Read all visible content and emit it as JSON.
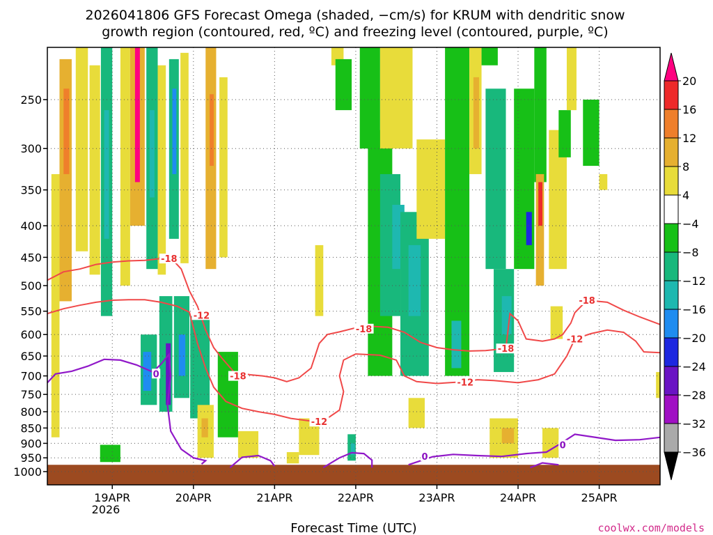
{
  "chart_data": {
    "type": "heatmap",
    "title_line1": "2026041806 GFS Forecast Omega (shaded, −cm/s) for KRUM with dendritic snow",
    "title_line2": "growth region (contoured, red, ºC) and freezing level (contoured, purple, ºC)",
    "xlabel": "Forecast Time (UTC)",
    "ylabel": "",
    "x_ticks": [
      "19APR",
      "20APR",
      "21APR",
      "22APR",
      "23APR",
      "24APR",
      "25APR"
    ],
    "x_tick_year": "2026",
    "xlim": [
      18.2,
      25.75
    ],
    "y_ticks": [
      250,
      300,
      350,
      400,
      450,
      500,
      550,
      600,
      650,
      700,
      750,
      800,
      850,
      900,
      950,
      1000
    ],
    "ylim": [
      1000,
      200
    ],
    "colorbar": {
      "tick_labels": [
        "20",
        "16",
        "12",
        "8",
        "4",
        "−4",
        "−8",
        "−12",
        "−16",
        "−20",
        "−24",
        "−28",
        "−32",
        "−36"
      ],
      "colors": [
        "#ff0080",
        "#ee2a2a",
        "#ef7f2b",
        "#e6b030",
        "#e8dc3a",
        "#ffffff",
        "#17c017",
        "#18b87c",
        "#1eb8b0",
        "#1f8cf0",
        "#1d28e0",
        "#6a14c4",
        "#a010c4",
        "#aaaaaa",
        "#000000"
      ]
    },
    "omega_cells": [
      {
        "t0": 18.35,
        "t1": 18.5,
        "p0": 215,
        "p1": 530,
        "v": 8
      },
      {
        "t0": 18.4,
        "t1": 18.47,
        "p0": 240,
        "p1": 330,
        "v": 14
      },
      {
        "t0": 18.25,
        "t1": 18.35,
        "p0": 330,
        "p1": 880,
        "v": 6
      },
      {
        "t0": 18.55,
        "t1": 18.7,
        "p0": 200,
        "p1": 440,
        "v": 5
      },
      {
        "t0": 18.72,
        "t1": 18.85,
        "p0": 220,
        "p1": 480,
        "v": 6
      },
      {
        "t0": 18.86,
        "t1": 19.0,
        "p0": 200,
        "p1": 560,
        "v": -8
      },
      {
        "t0": 18.9,
        "t1": 18.96,
        "p0": 260,
        "p1": 420,
        "v": -12
      },
      {
        "t0": 18.85,
        "t1": 19.1,
        "p0": 905,
        "p1": 965,
        "v": -6
      },
      {
        "t0": 19.1,
        "t1": 19.22,
        "p0": 200,
        "p1": 500,
        "v": 5
      },
      {
        "t0": 19.22,
        "t1": 19.4,
        "p0": 200,
        "p1": 400,
        "v": 10
      },
      {
        "t0": 19.28,
        "t1": 19.34,
        "p0": 205,
        "p1": 340,
        "v": 20
      },
      {
        "t0": 19.42,
        "t1": 19.56,
        "p0": 205,
        "p1": 470,
        "v": -9
      },
      {
        "t0": 19.46,
        "t1": 19.52,
        "p0": 260,
        "p1": 360,
        "v": -12
      },
      {
        "t0": 19.56,
        "t1": 19.66,
        "p0": 220,
        "p1": 480,
        "v": 5
      },
      {
        "t0": 19.7,
        "t1": 19.82,
        "p0": 215,
        "p1": 420,
        "v": -10
      },
      {
        "t0": 19.74,
        "t1": 19.79,
        "p0": 240,
        "p1": 330,
        "v": -17
      },
      {
        "t0": 19.84,
        "t1": 19.94,
        "p0": 210,
        "p1": 460,
        "v": 6
      },
      {
        "t0": 20.15,
        "t1": 20.28,
        "p0": 205,
        "p1": 470,
        "v": 8
      },
      {
        "t0": 20.2,
        "t1": 20.25,
        "p0": 245,
        "p1": 320,
        "v": 14
      },
      {
        "t0": 20.32,
        "t1": 20.42,
        "p0": 230,
        "p1": 450,
        "v": 5
      },
      {
        "t0": 19.35,
        "t1": 19.55,
        "p0": 600,
        "p1": 780,
        "v": -9
      },
      {
        "t0": 19.38,
        "t1": 19.48,
        "p0": 640,
        "p1": 740,
        "v": -16
      },
      {
        "t0": 19.58,
        "t1": 19.74,
        "p0": 520,
        "p1": 800,
        "v": -10
      },
      {
        "t0": 19.66,
        "t1": 19.72,
        "p0": 620,
        "p1": 780,
        "v": -26
      },
      {
        "t0": 19.76,
        "t1": 19.95,
        "p0": 520,
        "p1": 760,
        "v": -10
      },
      {
        "t0": 19.82,
        "t1": 19.9,
        "p0": 600,
        "p1": 700,
        "v": -16
      },
      {
        "t0": 19.96,
        "t1": 20.2,
        "p0": 560,
        "p1": 820,
        "v": -8
      },
      {
        "t0": 20.05,
        "t1": 20.25,
        "p0": 780,
        "p1": 950,
        "v": 6
      },
      {
        "t0": 20.1,
        "t1": 20.18,
        "p0": 820,
        "p1": 880,
        "v": 9
      },
      {
        "t0": 20.3,
        "t1": 20.55,
        "p0": 640,
        "p1": 880,
        "v": -6
      },
      {
        "t0": 20.55,
        "t1": 20.8,
        "p0": 860,
        "p1": 950,
        "v": 5
      },
      {
        "t0": 21.3,
        "t1": 21.55,
        "p0": 820,
        "p1": 940,
        "v": 5
      },
      {
        "t0": 21.5,
        "t1": 21.6,
        "p0": 430,
        "p1": 560,
        "v": 5
      },
      {
        "t0": 21.15,
        "t1": 21.3,
        "p0": 930,
        "p1": 970,
        "v": 6
      },
      {
        "t0": 21.7,
        "t1": 21.85,
        "p0": 200,
        "p1": 220,
        "v": 5
      },
      {
        "t0": 21.75,
        "t1": 21.95,
        "p0": 215,
        "p1": 260,
        "v": -6
      },
      {
        "t0": 21.9,
        "t1": 22.0,
        "p0": 870,
        "p1": 960,
        "v": -8
      },
      {
        "t0": 21.94,
        "t1": 21.99,
        "p0": 900,
        "p1": 940,
        "v": -14
      },
      {
        "t0": 22.05,
        "t1": 22.3,
        "p0": 200,
        "p1": 300,
        "v": -6
      },
      {
        "t0": 22.15,
        "t1": 22.45,
        "p0": 280,
        "p1": 700,
        "v": -7
      },
      {
        "t0": 22.3,
        "t1": 22.55,
        "p0": 330,
        "p1": 560,
        "v": -10
      },
      {
        "t0": 22.45,
        "t1": 22.6,
        "p0": 370,
        "p1": 470,
        "v": -14
      },
      {
        "t0": 22.55,
        "t1": 22.9,
        "p0": 380,
        "p1": 700,
        "v": -8
      },
      {
        "t0": 22.65,
        "t1": 22.8,
        "p0": 430,
        "p1": 560,
        "v": -13
      },
      {
        "t0": 22.3,
        "t1": 22.7,
        "p0": 200,
        "p1": 300,
        "v": 5
      },
      {
        "t0": 22.75,
        "t1": 23.1,
        "p0": 290,
        "p1": 420,
        "v": 5
      },
      {
        "t0": 22.65,
        "t1": 22.85,
        "p0": 760,
        "p1": 850,
        "v": 6
      },
      {
        "t0": 23.1,
        "t1": 23.4,
        "p0": 200,
        "p1": 700,
        "v": -7
      },
      {
        "t0": 23.18,
        "t1": 23.3,
        "p0": 570,
        "p1": 680,
        "v": -12
      },
      {
        "t0": 23.4,
        "t1": 23.55,
        "p0": 200,
        "p1": 330,
        "v": 6
      },
      {
        "t0": 23.45,
        "t1": 23.52,
        "p0": 230,
        "p1": 300,
        "v": 9
      },
      {
        "t0": 23.55,
        "t1": 23.75,
        "p0": 200,
        "p1": 220,
        "v": -6
      },
      {
        "t0": 23.6,
        "t1": 23.85,
        "p0": 240,
        "p1": 470,
        "v": -8
      },
      {
        "t0": 23.7,
        "t1": 23.95,
        "p0": 470,
        "p1": 690,
        "v": -10
      },
      {
        "t0": 23.8,
        "t1": 23.92,
        "p0": 520,
        "p1": 600,
        "v": -14
      },
      {
        "t0": 23.95,
        "t1": 24.2,
        "p0": 240,
        "p1": 470,
        "v": -7
      },
      {
        "t0": 24.1,
        "t1": 24.17,
        "p0": 380,
        "p1": 430,
        "v": -22
      },
      {
        "t0": 24.2,
        "t1": 24.35,
        "p0": 200,
        "p1": 340,
        "v": -7
      },
      {
        "t0": 24.22,
        "t1": 24.32,
        "p0": 330,
        "p1": 500,
        "v": 8
      },
      {
        "t0": 24.25,
        "t1": 24.3,
        "p0": 340,
        "p1": 400,
        "v": 18
      },
      {
        "t0": 24.38,
        "t1": 24.6,
        "p0": 280,
        "p1": 470,
        "v": 5
      },
      {
        "t0": 24.4,
        "t1": 24.55,
        "p0": 540,
        "p1": 610,
        "v": 5
      },
      {
        "t0": 24.5,
        "t1": 24.65,
        "p0": 260,
        "p1": 310,
        "v": -6
      },
      {
        "t0": 24.6,
        "t1": 24.72,
        "p0": 200,
        "p1": 260,
        "v": 5
      },
      {
        "t0": 24.8,
        "t1": 25.0,
        "p0": 250,
        "p1": 320,
        "v": -6
      },
      {
        "t0": 25.0,
        "t1": 25.1,
        "p0": 330,
        "p1": 350,
        "v": 5
      },
      {
        "t0": 23.65,
        "t1": 24.0,
        "p0": 820,
        "p1": 950,
        "v": 5
      },
      {
        "t0": 23.8,
        "t1": 23.95,
        "p0": 850,
        "p1": 900,
        "v": 9
      },
      {
        "t0": 24.3,
        "t1": 24.5,
        "p0": 850,
        "p1": 950,
        "v": 5
      },
      {
        "t0": 25.7,
        "t1": 25.75,
        "p0": 690,
        "p1": 760,
        "v": 5
      }
    ],
    "dgz_contours": [
      {
        "label": "-18",
        "label_x": 19.7,
        "label_p": 452,
        "points": [
          [
            18.2,
            490
          ],
          [
            18.4,
            475
          ],
          [
            18.6,
            470
          ],
          [
            18.8,
            462
          ],
          [
            19.0,
            458
          ],
          [
            19.2,
            456
          ],
          [
            19.4,
            455
          ],
          [
            19.6,
            452
          ],
          [
            19.75,
            455
          ],
          [
            19.85,
            470
          ],
          [
            19.95,
            510
          ],
          [
            20.05,
            540
          ],
          [
            20.15,
            590
          ],
          [
            20.25,
            630
          ],
          [
            20.35,
            655
          ],
          [
            20.5,
            690
          ],
          [
            20.7,
            697
          ],
          [
            20.85,
            700
          ],
          [
            21.0,
            705
          ],
          [
            21.15,
            715
          ],
          [
            21.3,
            705
          ],
          [
            21.45,
            680
          ],
          [
            21.55,
            620
          ],
          [
            21.65,
            600
          ],
          [
            21.8,
            594
          ],
          [
            22.0,
            585
          ],
          [
            22.2,
            582
          ],
          [
            22.4,
            584
          ],
          [
            22.6,
            595
          ],
          [
            22.8,
            618
          ],
          [
            23.0,
            630
          ],
          [
            23.2,
            635
          ],
          [
            23.4,
            638
          ],
          [
            23.6,
            637
          ],
          [
            23.85,
            632
          ],
          [
            23.9,
            555
          ],
          [
            24.0,
            570
          ],
          [
            24.1,
            610
          ],
          [
            24.3,
            615
          ],
          [
            24.45,
            610
          ],
          [
            24.55,
            600
          ],
          [
            24.65,
            575
          ],
          [
            24.7,
            553
          ],
          [
            24.85,
            528
          ],
          [
            25.1,
            532
          ],
          [
            25.3,
            548
          ],
          [
            25.5,
            562
          ],
          [
            25.75,
            578
          ]
        ]
      },
      {
        "label": "-12",
        "label_x": 20.1,
        "label_p": 558,
        "points": [
          [
            18.2,
            555
          ],
          [
            18.4,
            545
          ],
          [
            18.6,
            538
          ],
          [
            18.8,
            532
          ],
          [
            19.0,
            528
          ],
          [
            19.2,
            527
          ],
          [
            19.4,
            527
          ],
          [
            19.6,
            532
          ],
          [
            19.8,
            540
          ],
          [
            19.95,
            552
          ],
          [
            20.05,
            620
          ],
          [
            20.15,
            680
          ],
          [
            20.25,
            730
          ],
          [
            20.4,
            770
          ],
          [
            20.6,
            790
          ],
          [
            20.8,
            800
          ],
          [
            21.0,
            808
          ],
          [
            21.2,
            820
          ],
          [
            21.5,
            830
          ],
          [
            21.65,
            820
          ],
          [
            21.8,
            795
          ],
          [
            21.85,
            742
          ],
          [
            21.8,
            700
          ],
          [
            21.85,
            660
          ],
          [
            22.0,
            645
          ],
          [
            22.3,
            648
          ],
          [
            22.5,
            660
          ],
          [
            22.6,
            700
          ],
          [
            22.75,
            715
          ],
          [
            23.0,
            720
          ],
          [
            23.3,
            716
          ],
          [
            23.5,
            710
          ],
          [
            23.7,
            712
          ],
          [
            24.0,
            718
          ],
          [
            24.25,
            710
          ],
          [
            24.45,
            695
          ],
          [
            24.6,
            650
          ],
          [
            24.7,
            610
          ],
          [
            24.9,
            598
          ],
          [
            25.1,
            590
          ],
          [
            25.3,
            595
          ],
          [
            25.45,
            615
          ],
          [
            25.55,
            640
          ],
          [
            25.75,
            642
          ]
        ]
      }
    ],
    "dgz_labels": [
      {
        "text": "-18",
        "t": 20.55,
        "p": 700
      },
      {
        "text": "-12",
        "t": 21.55,
        "p": 830
      },
      {
        "text": "-18",
        "t": 22.1,
        "p": 587
      },
      {
        "text": "-12",
        "t": 23.35,
        "p": 716
      },
      {
        "text": "-18",
        "t": 23.85,
        "p": 632
      },
      {
        "text": "-12",
        "t": 24.7,
        "p": 610
      },
      {
        "text": "-18",
        "t": 24.85,
        "p": 528
      }
    ],
    "freezing_contours": [
      {
        "label": "0",
        "points": [
          [
            18.2,
            718
          ],
          [
            18.3,
            695
          ],
          [
            18.5,
            688
          ],
          [
            18.7,
            675
          ],
          [
            18.9,
            658
          ],
          [
            19.1,
            660
          ],
          [
            19.3,
            672
          ],
          [
            19.5,
            690
          ],
          [
            19.6,
            670
          ],
          [
            19.7,
            646
          ],
          [
            19.72,
            700
          ],
          [
            19.68,
            780
          ],
          [
            19.72,
            860
          ],
          [
            19.85,
            920
          ],
          [
            20.0,
            950
          ],
          [
            20.15,
            960
          ],
          [
            20.1,
            972
          ]
        ]
      },
      {
        "label": "0",
        "points": [
          [
            20.45,
            985
          ],
          [
            20.6,
            948
          ],
          [
            20.8,
            942
          ],
          [
            20.95,
            960
          ],
          [
            21.0,
            980
          ]
        ]
      },
      {
        "label": "0",
        "points": [
          [
            21.6,
            985
          ],
          [
            21.8,
            950
          ],
          [
            21.95,
            932
          ],
          [
            22.1,
            935
          ],
          [
            22.2,
            958
          ],
          [
            22.2,
            985
          ]
        ]
      },
      {
        "label": "0",
        "points": [
          [
            22.65,
            975
          ],
          [
            22.95,
            946
          ],
          [
            23.2,
            938
          ],
          [
            23.5,
            942
          ],
          [
            23.8,
            945
          ],
          [
            24.1,
            935
          ],
          [
            24.35,
            930
          ],
          [
            24.5,
            905
          ],
          [
            24.7,
            870
          ],
          [
            24.9,
            878
          ],
          [
            25.2,
            890
          ],
          [
            25.5,
            888
          ],
          [
            25.75,
            880
          ]
        ]
      },
      {
        "label": "0",
        "points": [
          [
            24.15,
            985
          ],
          [
            24.3,
            968
          ],
          [
            24.5,
            975
          ]
        ]
      }
    ],
    "freezing_labels": [
      {
        "text": "0",
        "t": 19.54,
        "p": 694
      },
      {
        "text": "0",
        "t": 22.85,
        "p": 944
      },
      {
        "text": "0",
        "t": 24.55,
        "p": 905
      }
    ],
    "terrain_top_p": 975,
    "source_label": "coolwx.com/models"
  }
}
